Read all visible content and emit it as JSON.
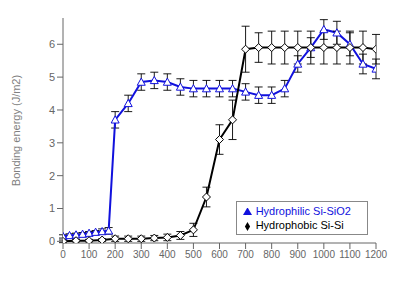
{
  "chart_data": {
    "type": "line",
    "ylabel": "Bonding energy (J/m2)",
    "xlim": [
      0,
      1200
    ],
    "ylim": [
      -0.05,
      6.8
    ],
    "xticks": [
      0,
      100,
      200,
      300,
      400,
      500,
      600,
      700,
      800,
      900,
      1000,
      1100,
      1200
    ],
    "yticks": [
      0,
      1,
      2,
      3,
      4,
      5,
      6
    ],
    "grid": false,
    "legend": "lower right",
    "series": [
      {
        "name": "Hydrophilic Si-SiO2",
        "color": "#1111dd",
        "marker": "triangle",
        "x": [
          0,
          25,
          50,
          75,
          100,
          125,
          150,
          175,
          200,
          250,
          300,
          350,
          400,
          450,
          500,
          550,
          600,
          650,
          700,
          750,
          800,
          850,
          900,
          950,
          1000,
          1050,
          1100,
          1150,
          1200
        ],
        "values": [
          0.15,
          0.18,
          0.2,
          0.22,
          0.25,
          0.28,
          0.3,
          0.32,
          3.7,
          4.2,
          4.85,
          4.9,
          4.85,
          4.7,
          4.65,
          4.65,
          4.65,
          4.65,
          4.55,
          4.45,
          4.45,
          4.65,
          5.4,
          5.9,
          6.45,
          6.35,
          6.0,
          5.4,
          5.25
        ],
        "yerr": [
          0.05,
          0.05,
          0.05,
          0.05,
          0.05,
          0.05,
          0.08,
          0.1,
          0.25,
          0.25,
          0.25,
          0.25,
          0.25,
          0.25,
          0.25,
          0.25,
          0.25,
          0.25,
          0.25,
          0.25,
          0.25,
          0.25,
          0.25,
          0.3,
          0.3,
          0.35,
          0.35,
          0.3,
          0.3
        ]
      },
      {
        "name": "Hydrophobic Si-Si",
        "color": "#000000",
        "marker": "diamond",
        "x": [
          0,
          50,
          100,
          150,
          200,
          250,
          300,
          350,
          400,
          450,
          500,
          550,
          600,
          650,
          700,
          750,
          800,
          850,
          900,
          950,
          1000,
          1050,
          1100,
          1150,
          1200
        ],
        "values": [
          0.0,
          0.02,
          0.02,
          0.04,
          0.08,
          0.08,
          0.08,
          0.1,
          0.12,
          0.18,
          0.35,
          1.35,
          3.1,
          3.7,
          5.85,
          5.9,
          5.9,
          5.9,
          5.9,
          5.9,
          5.9,
          5.9,
          5.9,
          5.9,
          5.85
        ],
        "yerr": [
          0.04,
          0.04,
          0.04,
          0.04,
          0.08,
          0.08,
          0.08,
          0.08,
          0.1,
          0.12,
          0.2,
          0.3,
          0.45,
          0.6,
          0.7,
          0.45,
          0.5,
          0.5,
          0.5,
          0.5,
          0.5,
          0.5,
          0.5,
          0.5,
          0.45
        ]
      }
    ]
  }
}
